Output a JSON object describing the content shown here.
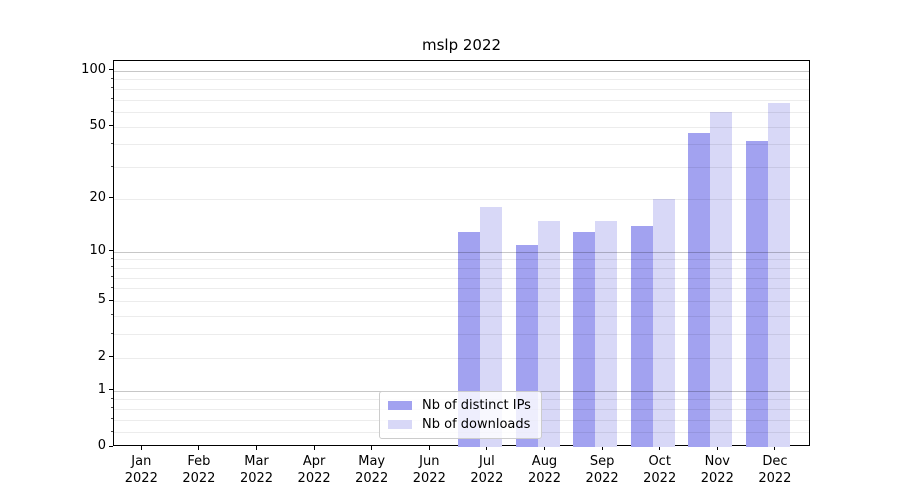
{
  "chart_data": {
    "type": "bar",
    "title": "mslp 2022",
    "x_tick_labels": [
      {
        "month": "Jan",
        "year": "2022"
      },
      {
        "month": "Feb",
        "year": "2022"
      },
      {
        "month": "Mar",
        "year": "2022"
      },
      {
        "month": "Apr",
        "year": "2022"
      },
      {
        "month": "May",
        "year": "2022"
      },
      {
        "month": "Jun",
        "year": "2022"
      },
      {
        "month": "Jul",
        "year": "2022"
      },
      {
        "month": "Aug",
        "year": "2022"
      },
      {
        "month": "Sep",
        "year": "2022"
      },
      {
        "month": "Oct",
        "year": "2022"
      },
      {
        "month": "Nov",
        "year": "2022"
      },
      {
        "month": "Dec",
        "year": "2022"
      }
    ],
    "series": [
      {
        "name": "Nb of distinct IPs",
        "color": "#a2a2f0",
        "values": [
          0,
          0,
          0,
          0,
          0,
          0,
          13,
          11,
          13,
          14,
          46,
          42
        ]
      },
      {
        "name": "Nb of downloads",
        "color": "#d8d8f7",
        "values": [
          0,
          0,
          0,
          0,
          0,
          0,
          18,
          15,
          15,
          20,
          60,
          67
        ]
      }
    ],
    "yaxis": {
      "scale": "log1p",
      "top_value": 113,
      "ticks": [
        {
          "v": 0,
          "label": "0"
        },
        {
          "v": 1,
          "label": "1"
        },
        {
          "v": 2,
          "label": "2"
        },
        {
          "v": 5,
          "label": "5"
        },
        {
          "v": 10,
          "label": "10"
        },
        {
          "v": 20,
          "label": "20"
        },
        {
          "v": 50,
          "label": "50"
        },
        {
          "v": 100,
          "label": "100"
        }
      ],
      "gridlines_major": [
        1,
        10,
        100
      ],
      "gridlines_minor": [
        0.2,
        0.4,
        0.6,
        0.8,
        2,
        3,
        4,
        5,
        6,
        7,
        8,
        9,
        20,
        30,
        40,
        50,
        60,
        70,
        80,
        90
      ]
    },
    "grid": true,
    "legend_position": "lower center"
  }
}
